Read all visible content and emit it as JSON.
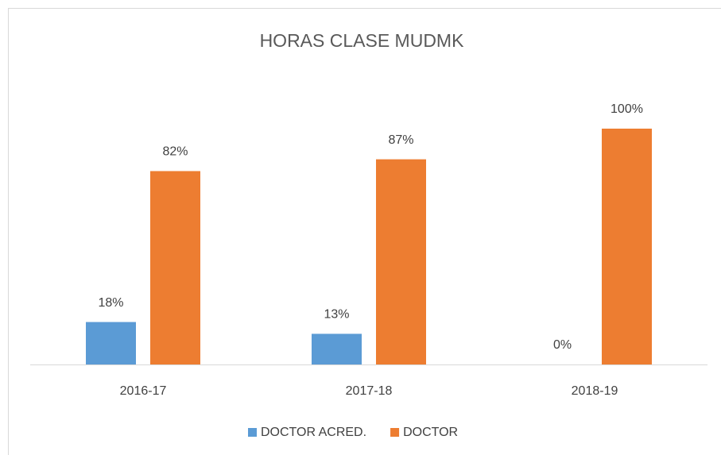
{
  "chart_data": {
    "type": "bar",
    "title": "HORAS CLASE MUDMK",
    "categories": [
      "2016-17",
      "2017-18",
      "2018-19"
    ],
    "series": [
      {
        "name": "DOCTOR ACRED.",
        "color": "#5b9bd5",
        "values": [
          18,
          13,
          0
        ],
        "value_labels": [
          "18%",
          "13%",
          "0%"
        ]
      },
      {
        "name": "DOCTOR",
        "color": "#ed7d31",
        "values": [
          82,
          87,
          100
        ],
        "value_labels": [
          "82%",
          "87%",
          "100%"
        ]
      }
    ],
    "legend": "bottom"
  }
}
